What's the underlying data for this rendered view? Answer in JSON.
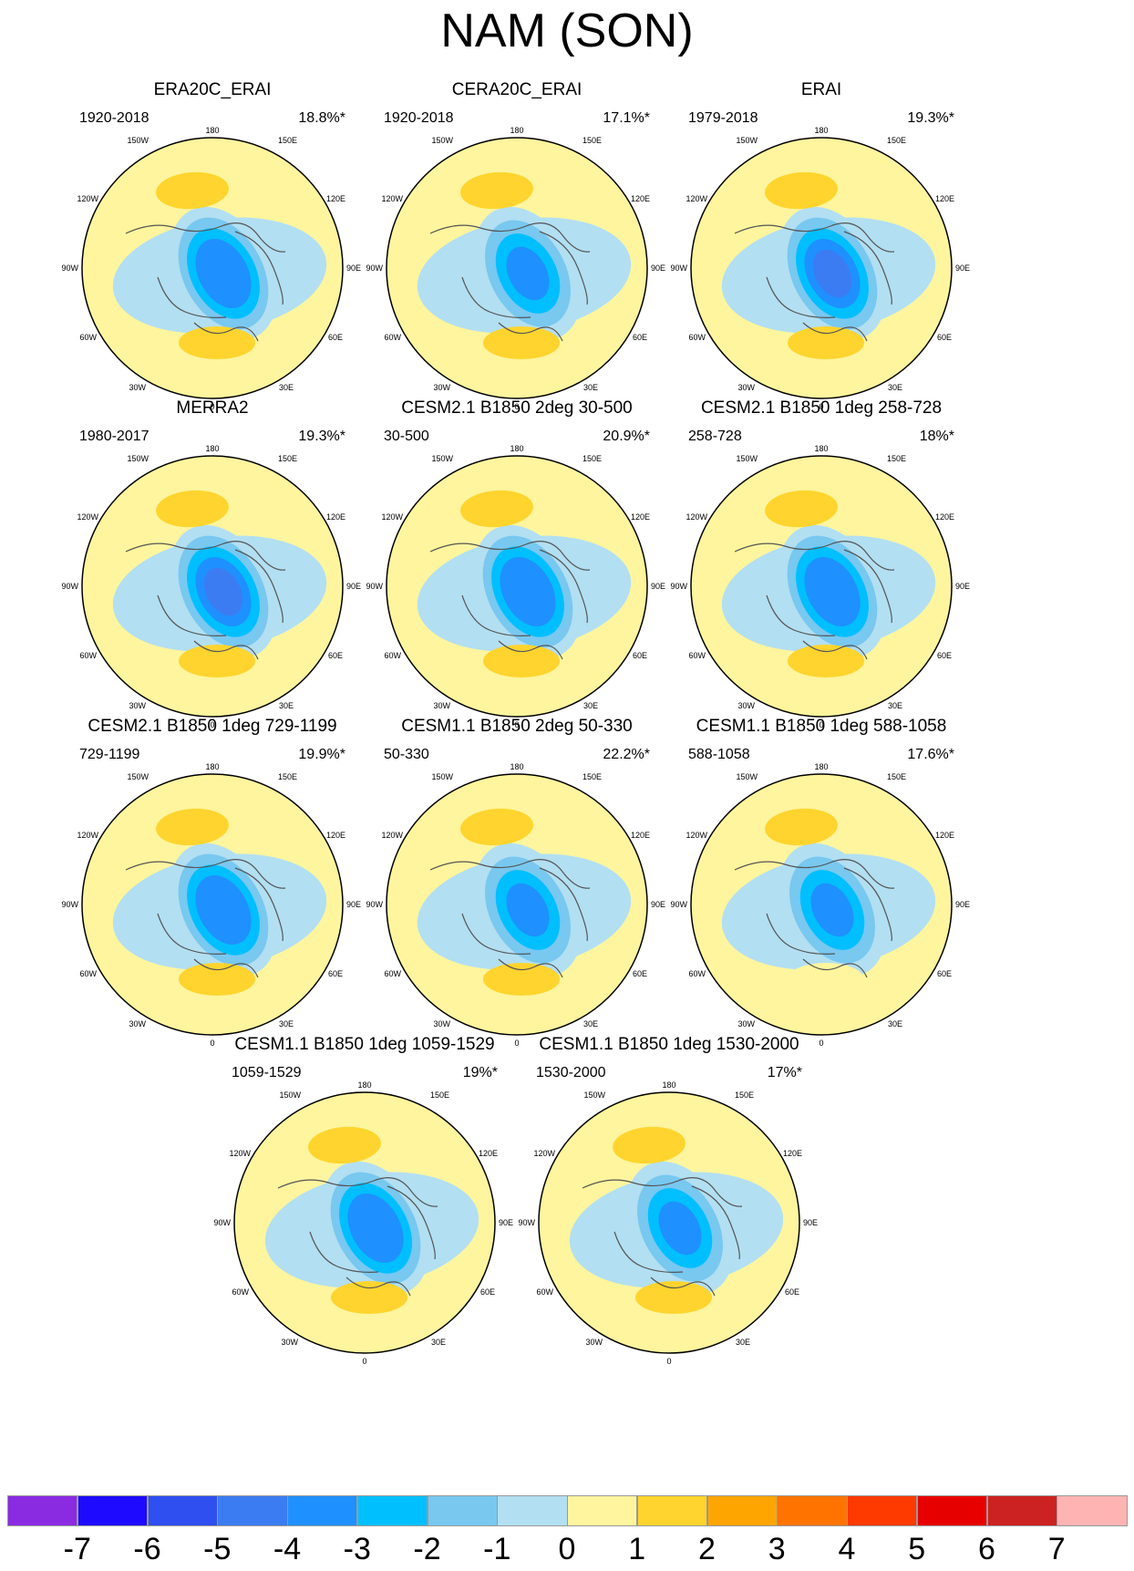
{
  "title": "NAM (SON)",
  "map_labels": {
    "top": "180",
    "bottom": "0",
    "left": "90W",
    "right": "90E",
    "upper_left_1": "150W",
    "upper_left_2": "120W",
    "upper_right_1": "150E",
    "upper_right_2": "120E",
    "lower_left_1": "60W",
    "lower_left_2": "30W",
    "lower_right_1": "60E",
    "lower_right_2": "30E"
  },
  "panels": [
    {
      "title": "ERA20C_ERAI",
      "period": "1920-2018",
      "variance": "18.8%*",
      "center_strength": 3.6,
      "pacific_strength": 1.8,
      "atlantic_strength": 1.2
    },
    {
      "title": "CERA20C_ERAI",
      "period": "1920-2018",
      "variance": "17.1%*",
      "center_strength": 3.2,
      "pacific_strength": 1.3,
      "atlantic_strength": 1.4
    },
    {
      "title": "ERAI",
      "period": "1979-2018",
      "variance": "19.3%*",
      "center_strength": 4.4,
      "pacific_strength": 1.4,
      "atlantic_strength": 1.2
    },
    {
      "title": "MERRA2",
      "period": "1980-2017",
      "variance": "19.3%*",
      "center_strength": 4.2,
      "pacific_strength": 1.3,
      "atlantic_strength": 1.2
    },
    {
      "title": "CESM2.1 B1850 2deg 30-500",
      "period": "30-500",
      "variance": "20.9%*",
      "center_strength": 3.7,
      "pacific_strength": 1.2,
      "atlantic_strength": 1.5
    },
    {
      "title": "CESM2.1 B1850 1deg 258-728",
      "period": "258-728",
      "variance": "18%*",
      "center_strength": 3.9,
      "pacific_strength": 1.2,
      "atlantic_strength": 1.4
    },
    {
      "title": "CESM2.1 B1850 1deg 729-1199",
      "period": "729-1199",
      "variance": "19.9%*",
      "center_strength": 3.6,
      "pacific_strength": 1.2,
      "atlantic_strength": 1.3
    },
    {
      "title": "CESM1.1 B1850 2deg 50-330",
      "period": "50-330",
      "variance": "22.2%*",
      "center_strength": 3.3,
      "pacific_strength": 1.3,
      "atlantic_strength": 1.6
    },
    {
      "title": "CESM1.1 B1850 1deg 588-1058",
      "period": "588-1058",
      "variance": "17.6%*",
      "center_strength": 3.4,
      "pacific_strength": 1.2,
      "atlantic_strength": 0.4
    },
    {
      "title": "CESM1.1 B1850 1deg 1059-1529",
      "period": "1059-1529",
      "variance": "19%*",
      "center_strength": 3.8,
      "pacific_strength": 1.2,
      "atlantic_strength": 1.2
    },
    {
      "title": "CESM1.1 B1850 1deg 1530-2000",
      "period": "1530-2000",
      "variance": "17%*",
      "center_strength": 3.3,
      "pacific_strength": 1.3,
      "atlantic_strength": 1.2
    }
  ],
  "colorbar": {
    "colors": [
      "#8a2be2",
      "#1e0bff",
      "#2f4ff0",
      "#3c7cf2",
      "#1e90ff",
      "#00bfff",
      "#78c8f0",
      "#b2dff2",
      "#fff59e",
      "#ffd42e",
      "#ffa500",
      "#ff7400",
      "#ff3a00",
      "#e60000",
      "#cc2222",
      "#ffb4b4"
    ],
    "ticks": [
      "-7",
      "-6",
      "-5",
      "-4",
      "-3",
      "-2",
      "-1",
      "0",
      "1",
      "2",
      "3",
      "4",
      "5",
      "6",
      "7"
    ]
  }
}
